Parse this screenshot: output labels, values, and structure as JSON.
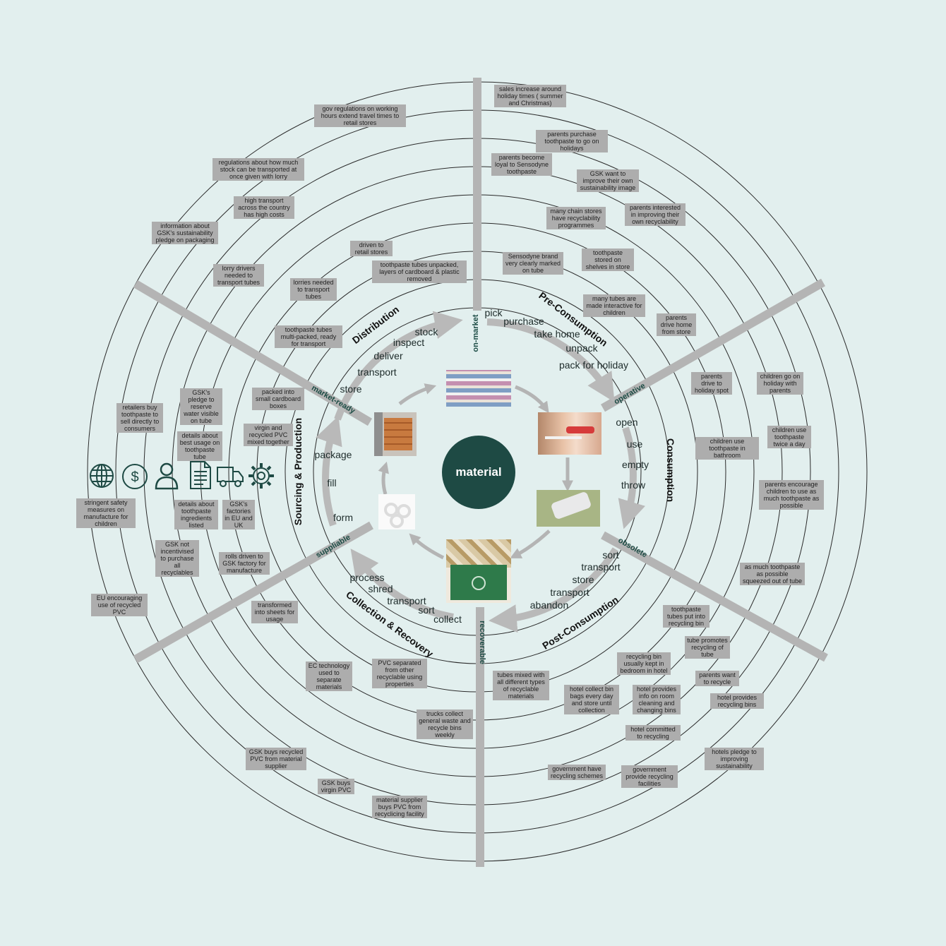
{
  "center": {
    "label": "material"
  },
  "stages": [
    {
      "id": "distribution",
      "label": "Distribution"
    },
    {
      "id": "pre-consumption",
      "label": "Pre-Consumption"
    },
    {
      "id": "consumption",
      "label": "Consumption"
    },
    {
      "id": "post-consumption",
      "label": "Post-Consumption"
    },
    {
      "id": "collection-recovery",
      "label": "Collection & Recovery"
    },
    {
      "id": "sourcing-production",
      "label": "Sourcing & Production"
    }
  ],
  "states": [
    {
      "id": "on-market",
      "label": "on-market"
    },
    {
      "id": "operative",
      "label": "operative"
    },
    {
      "id": "obsolete",
      "label": "obsolete"
    },
    {
      "id": "recoverable",
      "label": "recoverable"
    },
    {
      "id": "suppliable",
      "label": "suppliable"
    },
    {
      "id": "market-ready",
      "label": "market-ready"
    }
  ],
  "verbs": [
    "store",
    "transport",
    "deliver",
    "inspect",
    "stock",
    "pick",
    "purchase",
    "take home",
    "unpack",
    "pack for holiday",
    "open",
    "use",
    "empty",
    "throw",
    "sort",
    "transport",
    "store",
    "transport",
    "abandon",
    "collect",
    "sort",
    "transport",
    "shred",
    "process",
    "form",
    "fill",
    "package"
  ],
  "icons": [
    "globe-icon",
    "dollar-icon",
    "person-icon",
    "document-icon",
    "truck-icon",
    "gear-icon"
  ],
  "colors": {
    "background": "#e2efee",
    "center": "#1e4a44",
    "axis": "#b4b4b4",
    "note": "#adadad",
    "ring": "#2a2a2a",
    "arrow": "#b4b4b4"
  },
  "notes": [
    "sales increase around holiday times ( summer and Christmas)",
    "gov regulations on working hours extend travel times to retail stores",
    "parents purchase toothpaste to go on holidays",
    "parents become loyal to Sensodyne toothpaste",
    "GSK want to improve their own sustainability image",
    "regulations about how much stock can be transported at once given with lorry",
    "high transport across the country has high costs",
    "parents interested in improving their own recyclability",
    "many chain stores have recyclability programmes",
    "information about GSK's sustainability pledge on packaging",
    "driven to retail stores",
    "Sensodyne brand very clearly marked on tube",
    "toothpaste stored on shelves in store",
    "lorry drivers needed to transport tubes",
    "toothpaste tubes unpacked, layers of cardboard & plastic removed",
    "lorries needed to transport tubes",
    "many tubes are made interactive for children",
    "parents drive home from store",
    "toothpaste tubes multi-packed, ready for transport",
    "parents drive to holiday spot",
    "children go on holiday with parents",
    "GSK's pledge to reserve water visible on tube",
    "packed into small cardboard boxes",
    "retailers buy toothpaste to sell directly to consumers",
    "details about best usage on toothpaste tube",
    "virgin and recycled PVC mixed together",
    "children use toothpaste twice a day",
    "children use toothpaste in bathroom",
    "parents encourage children to use as much toothpaste as possible",
    "stringent safety measures on manufacture for children",
    "details about toothpaste ingredients listed",
    "GSK's factories in EU and UK",
    "GSK not incentivised to purchase all recyclables",
    "rolls driven to GSK factory for manufacture",
    "as much toothpaste as possible squeezed out of tube",
    "EU encouraging use of recycled PVC",
    "transformed into sheets for usage",
    "toothpaste tubes put into recycling bin",
    "tube promotes recycling of tube",
    "recycling bin usually kept in bedroom in hotel",
    "EC technology used to separate materials",
    "PVC separated from other recyclable using properties",
    "tubes mixed with all different types of recyclable materials",
    "parents want to recycle",
    "hotel collect bin bags every day and store until collection",
    "hotel provides info on room cleaning and changing bins",
    "hotel provides recycling bins",
    "trucks collect general waste and recycle bins weekly",
    "hotel committed to recycling",
    "GSK buys recycled PVC from material supplier",
    "hotels pledge to improving sustainability",
    "government have recycling schemes",
    "government provide recycling facilities",
    "GSK buys virgin PVC",
    "material supplier buys PVC from recyclicing facility"
  ]
}
